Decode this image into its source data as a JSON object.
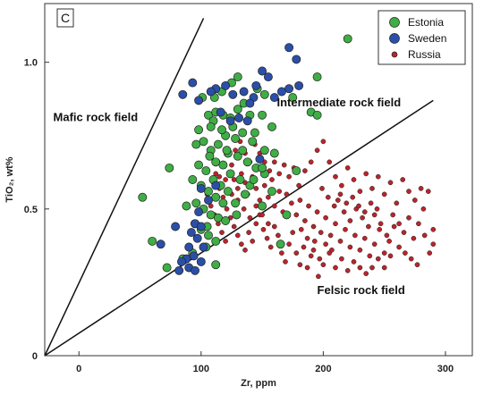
{
  "chart_data": {
    "type": "scatter",
    "panel_label": "C",
    "title": "",
    "xlabel": "Zr, ppm",
    "ylabel": "TiO₂, wt%",
    "xlim": [
      -28,
      322
    ],
    "ylim": [
      0,
      1.2
    ],
    "x_ticks": [
      0,
      100,
      200,
      300
    ],
    "y_ticks": [
      0,
      0.5,
      1.0
    ],
    "x_tick_labels": [
      "0",
      "100",
      "200",
      "300"
    ],
    "y_tick_labels": [
      "0",
      "0.5",
      "1.0"
    ],
    "grid": false,
    "legend_position": "top-right",
    "fields": [
      {
        "label": "Mafic rock field",
        "line": [
          [
            -28,
            0
          ],
          [
            102,
            1.15
          ]
        ],
        "label_at": [
          -21,
          0.8
        ]
      },
      {
        "label": "Intermediate rock field",
        "label_at": [
          162,
          0.85
        ]
      },
      {
        "label": "Felsic rock field",
        "line": [
          [
            -28,
            0
          ],
          [
            290,
            0.87
          ]
        ],
        "label_at": [
          195,
          0.21
        ]
      }
    ],
    "series": [
      {
        "name": "Estonia",
        "color": "#3fae45",
        "points": [
          [
            220,
            1.08
          ],
          [
            195,
            0.95
          ],
          [
            190,
            0.83
          ],
          [
            195,
            0.82
          ],
          [
            175,
            0.88
          ],
          [
            152,
            0.89
          ],
          [
            146,
            0.91
          ],
          [
            130,
            0.95
          ],
          [
            125,
            0.93
          ],
          [
            117,
            0.9
          ],
          [
            111,
            0.88
          ],
          [
            101,
            0.88
          ],
          [
            106,
            0.82
          ],
          [
            110,
            0.8
          ],
          [
            112,
            0.83
          ],
          [
            118,
            0.82
          ],
          [
            124,
            0.81
          ],
          [
            130,
            0.84
          ],
          [
            135,
            0.86
          ],
          [
            140,
            0.82
          ],
          [
            150,
            0.82
          ],
          [
            158,
            0.78
          ],
          [
            108,
            0.78
          ],
          [
            120,
            0.75
          ],
          [
            128,
            0.74
          ],
          [
            134,
            0.76
          ],
          [
            142,
            0.73
          ],
          [
            152,
            0.7
          ],
          [
            160,
            0.69
          ],
          [
            102,
            0.73
          ],
          [
            96,
            0.72
          ],
          [
            108,
            0.7
          ],
          [
            114,
            0.72
          ],
          [
            122,
            0.69
          ],
          [
            130,
            0.68
          ],
          [
            138,
            0.66
          ],
          [
            145,
            0.64
          ],
          [
            152,
            0.62
          ],
          [
            112,
            0.66
          ],
          [
            118,
            0.65
          ],
          [
            124,
            0.62
          ],
          [
            132,
            0.6
          ],
          [
            140,
            0.58
          ],
          [
            98,
            0.65
          ],
          [
            104,
            0.63
          ],
          [
            110,
            0.6
          ],
          [
            116,
            0.58
          ],
          [
            122,
            0.56
          ],
          [
            100,
            0.58
          ],
          [
            106,
            0.56
          ],
          [
            112,
            0.54
          ],
          [
            118,
            0.52
          ],
          [
            128,
            0.52
          ],
          [
            96,
            0.52
          ],
          [
            102,
            0.5
          ],
          [
            108,
            0.48
          ],
          [
            114,
            0.47
          ],
          [
            120,
            0.46
          ],
          [
            95,
            0.45
          ],
          [
            100,
            0.43
          ],
          [
            106,
            0.41
          ],
          [
            112,
            0.39
          ],
          [
            74,
            0.64
          ],
          [
            52,
            0.54
          ],
          [
            60,
            0.39
          ],
          [
            72,
            0.3
          ],
          [
            85,
            0.33
          ],
          [
            93,
            0.35
          ],
          [
            104,
            0.37
          ],
          [
            112,
            0.31
          ],
          [
            165,
            0.38
          ],
          [
            170,
            0.48
          ],
          [
            178,
            0.63
          ],
          [
            150,
            0.64
          ],
          [
            158,
            0.56
          ],
          [
            126,
            0.78
          ],
          [
            134,
            0.7
          ],
          [
            144,
            0.76
          ],
          [
            88,
            0.51
          ],
          [
            93,
            0.6
          ],
          [
            117,
            0.77
          ],
          [
            143,
            0.6
          ],
          [
            136,
            0.55
          ],
          [
            129,
            0.48
          ],
          [
            150,
            0.51
          ],
          [
            98,
            0.77
          ],
          [
            107,
            0.68
          ],
          [
            121,
            0.7
          ],
          [
            105,
            0.44
          ]
        ]
      },
      {
        "name": "Sweden",
        "color": "#2b4fa8",
        "points": [
          [
            172,
            1.05
          ],
          [
            178,
            1.01
          ],
          [
            180,
            0.92
          ],
          [
            172,
            0.91
          ],
          [
            166,
            0.9
          ],
          [
            160,
            0.88
          ],
          [
            155,
            0.95
          ],
          [
            150,
            0.97
          ],
          [
            145,
            0.92
          ],
          [
            143,
            0.88
          ],
          [
            140,
            0.86
          ],
          [
            135,
            0.9
          ],
          [
            126,
            0.89
          ],
          [
            120,
            0.92
          ],
          [
            112,
            0.91
          ],
          [
            108,
            0.9
          ],
          [
            116,
            0.83
          ],
          [
            124,
            0.8
          ],
          [
            131,
            0.81
          ],
          [
            138,
            0.8
          ],
          [
            93,
            0.93
          ],
          [
            98,
            0.87
          ],
          [
            85,
            0.89
          ],
          [
            98,
            0.49
          ],
          [
            95,
            0.45
          ],
          [
            100,
            0.44
          ],
          [
            92,
            0.42
          ],
          [
            97,
            0.4
          ],
          [
            90,
            0.37
          ],
          [
            94,
            0.34
          ],
          [
            88,
            0.33
          ],
          [
            84,
            0.32
          ],
          [
            90,
            0.3
          ],
          [
            95,
            0.29
          ],
          [
            82,
            0.29
          ],
          [
            100,
            0.32
          ],
          [
            100,
            0.57
          ],
          [
            112,
            0.58
          ],
          [
            106,
            0.53
          ],
          [
            102,
            0.37
          ],
          [
            79,
            0.44
          ],
          [
            67,
            0.38
          ],
          [
            148,
            0.67
          ]
        ]
      },
      {
        "name": "Russia",
        "color": "#b8252b",
        "points": [
          [
            125,
            0.65
          ],
          [
            127,
            0.6
          ],
          [
            130,
            0.57
          ],
          [
            133,
            0.62
          ],
          [
            136,
            0.59
          ],
          [
            138,
            0.55
          ],
          [
            142,
            0.61
          ],
          [
            145,
            0.57
          ],
          [
            148,
            0.53
          ],
          [
            152,
            0.58
          ],
          [
            155,
            0.54
          ],
          [
            158,
            0.6
          ],
          [
            160,
            0.51
          ],
          [
            164,
            0.56
          ],
          [
            167,
            0.49
          ],
          [
            170,
            0.55
          ],
          [
            174,
            0.52
          ],
          [
            178,
            0.48
          ],
          [
            181,
            0.53
          ],
          [
            185,
            0.46
          ],
          [
            188,
            0.51
          ],
          [
            192,
            0.44
          ],
          [
            195,
            0.49
          ],
          [
            198,
            0.42
          ],
          [
            202,
            0.47
          ],
          [
            206,
            0.41
          ],
          [
            210,
            0.45
          ],
          [
            214,
            0.39
          ],
          [
            218,
            0.43
          ],
          [
            222,
            0.37
          ],
          [
            226,
            0.41
          ],
          [
            230,
            0.36
          ],
          [
            234,
            0.4
          ],
          [
            238,
            0.34
          ],
          [
            242,
            0.38
          ],
          [
            246,
            0.43
          ],
          [
            250,
            0.35
          ],
          [
            254,
            0.39
          ],
          [
            258,
            0.44
          ],
          [
            262,
            0.37
          ],
          [
            266,
            0.42
          ],
          [
            270,
            0.47
          ],
          [
            274,
            0.4
          ],
          [
            278,
            0.45
          ],
          [
            282,
            0.5
          ],
          [
            286,
            0.56
          ],
          [
            290,
            0.43
          ],
          [
            290,
            0.38
          ],
          [
            180,
            0.58
          ],
          [
            185,
            0.63
          ],
          [
            190,
            0.66
          ],
          [
            195,
            0.7
          ],
          [
            200,
            0.73
          ],
          [
            205,
            0.66
          ],
          [
            210,
            0.61
          ],
          [
            215,
            0.58
          ],
          [
            220,
            0.64
          ],
          [
            225,
            0.6
          ],
          [
            230,
            0.56
          ],
          [
            235,
            0.62
          ],
          [
            240,
            0.57
          ],
          [
            245,
            0.61
          ],
          [
            250,
            0.55
          ],
          [
            255,
            0.59
          ],
          [
            260,
            0.52
          ],
          [
            265,
            0.6
          ],
          [
            270,
            0.56
          ],
          [
            275,
            0.53
          ],
          [
            280,
            0.57
          ],
          [
            112,
            0.62
          ],
          [
            115,
            0.57
          ],
          [
            118,
            0.54
          ],
          [
            121,
            0.5
          ],
          [
            124,
            0.47
          ],
          [
            127,
            0.44
          ],
          [
            130,
            0.41
          ],
          [
            133,
            0.38
          ],
          [
            136,
            0.36
          ],
          [
            139,
            0.42
          ],
          [
            142,
            0.39
          ],
          [
            145,
            0.45
          ],
          [
            148,
            0.48
          ],
          [
            151,
            0.43
          ],
          [
            154,
            0.4
          ],
          [
            157,
            0.37
          ],
          [
            160,
            0.44
          ],
          [
            163,
            0.41
          ],
          [
            166,
            0.35
          ],
          [
            169,
            0.32
          ],
          [
            172,
            0.38
          ],
          [
            175,
            0.42
          ],
          [
            178,
            0.35
          ],
          [
            181,
            0.31
          ],
          [
            184,
            0.37
          ],
          [
            187,
            0.3
          ],
          [
            190,
            0.34
          ],
          [
            193,
            0.39
          ],
          [
            196,
            0.27
          ],
          [
            200,
            0.31
          ],
          [
            205,
            0.35
          ],
          [
            210,
            0.3
          ],
          [
            215,
            0.33
          ],
          [
            220,
            0.29
          ],
          [
            225,
            0.32
          ],
          [
            230,
            0.3
          ],
          [
            235,
            0.28
          ],
          [
            240,
            0.3
          ],
          [
            245,
            0.33
          ],
          [
            250,
            0.3
          ],
          [
            255,
            0.34
          ],
          [
            128,
            0.7
          ],
          [
            132,
            0.73
          ],
          [
            136,
            0.69
          ],
          [
            140,
            0.66
          ],
          [
            144,
            0.72
          ],
          [
            148,
            0.69
          ],
          [
            152,
            0.66
          ],
          [
            156,
            0.63
          ],
          [
            160,
            0.66
          ],
          [
            164,
            0.62
          ],
          [
            168,
            0.65
          ],
          [
            172,
            0.61
          ],
          [
            176,
            0.64
          ],
          [
            105,
            0.55
          ],
          [
            108,
            0.51
          ],
          [
            111,
            0.48
          ],
          [
            114,
            0.45
          ],
          [
            117,
            0.42
          ],
          [
            120,
            0.39
          ],
          [
            110,
            0.59
          ],
          [
            115,
            0.61
          ],
          [
            120,
            0.6
          ],
          [
            125,
            0.55
          ],
          [
            130,
            0.53
          ],
          [
            135,
            0.5
          ],
          [
            140,
            0.47
          ],
          [
            145,
            0.51
          ],
          [
            150,
            0.48
          ],
          [
            155,
            0.45
          ],
          [
            182,
            0.43
          ],
          [
            187,
            0.4
          ],
          [
            192,
            0.36
          ],
          [
            197,
            0.33
          ],
          [
            202,
            0.38
          ],
          [
            207,
            0.36
          ],
          [
            212,
            0.53
          ],
          [
            217,
            0.49
          ],
          [
            222,
            0.46
          ],
          [
            227,
            0.5
          ],
          [
            232,
            0.47
          ],
          [
            237,
            0.44
          ],
          [
            242,
            0.48
          ],
          [
            247,
            0.45
          ],
          [
            252,
            0.41
          ],
          [
            257,
            0.48
          ],
          [
            262,
            0.45
          ],
          [
            267,
            0.35
          ],
          [
            272,
            0.33
          ],
          [
            277,
            0.31
          ],
          [
            283,
            0.41
          ],
          [
            287,
            0.35
          ],
          [
            199,
            0.57
          ],
          [
            204,
            0.54
          ],
          [
            209,
            0.51
          ],
          [
            214,
            0.55
          ],
          [
            219,
            0.52
          ],
          [
            224,
            0.54
          ],
          [
            229,
            0.51
          ],
          [
            234,
            0.49
          ],
          [
            239,
            0.52
          ],
          [
            244,
            0.5
          ]
        ]
      }
    ]
  }
}
